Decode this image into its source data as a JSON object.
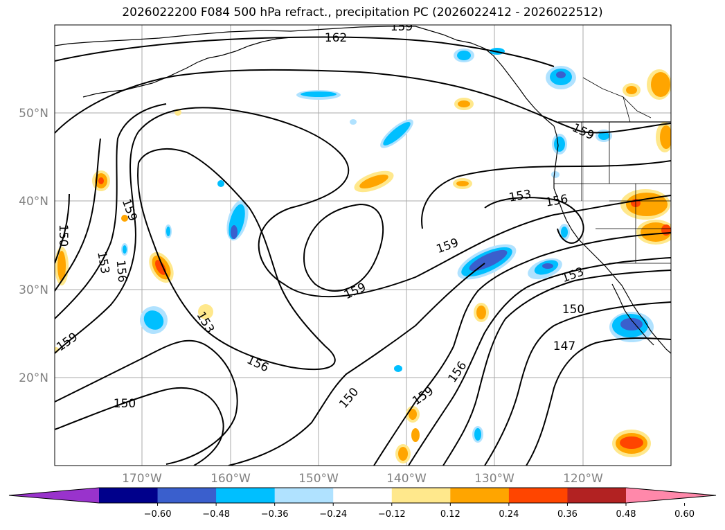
{
  "title": "2026022200 F084 500 hPa refract., precipitation PC (2026022412 - 2026022512)",
  "map": {
    "lon_labels": [
      "170°W",
      "160°W",
      "150°W",
      "140°W",
      "130°W",
      "120°W"
    ],
    "lat_labels": [
      "50°N",
      "40°N",
      "30°N",
      "20°N"
    ],
    "contour_labels": [
      {
        "text": "162"
      },
      {
        "text": "159"
      },
      {
        "text": "159"
      },
      {
        "text": "153"
      },
      {
        "text": "156"
      },
      {
        "text": "159"
      },
      {
        "text": "150"
      },
      {
        "text": "159"
      },
      {
        "text": "153"
      },
      {
        "text": "156"
      },
      {
        "text": "159"
      },
      {
        "text": "153"
      },
      {
        "text": "150"
      },
      {
        "text": "147"
      },
      {
        "text": "156"
      },
      {
        "text": "159"
      },
      {
        "text": "150"
      },
      {
        "text": "150"
      },
      {
        "text": "153"
      },
      {
        "text": "156"
      },
      {
        "text": "159"
      }
    ]
  },
  "colorbar": {
    "ticks": [
      "−0.60",
      "−0.48",
      "−0.36",
      "−0.24",
      "−0.12",
      "0.12",
      "0.24",
      "0.36",
      "0.48",
      "0.60"
    ],
    "colors": [
      "#9933cc",
      "#00008b",
      "#3a5fcd",
      "#00bfff",
      "#b0e2ff",
      "#ffffff",
      "#ffe88c",
      "#ffa500",
      "#ff4500",
      "#b22222",
      "#ff88aa"
    ]
  }
}
